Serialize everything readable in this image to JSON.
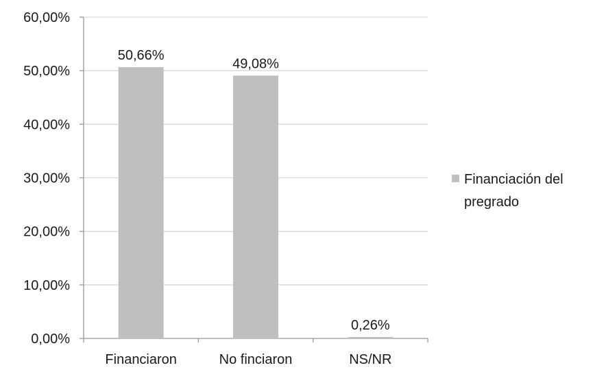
{
  "chart_data": {
    "type": "bar",
    "categories": [
      "Financiaron",
      "No finciaron",
      "NS/NR"
    ],
    "series": [
      {
        "name": "Financiación del pregrado",
        "values": [
          50.66,
          49.08,
          0.26
        ],
        "data_labels": [
          "50,66%",
          "49,08%",
          "0,26%"
        ],
        "color": "#bfbfbf"
      }
    ],
    "ylim": [
      0,
      60
    ],
    "yticks": [
      0,
      10,
      20,
      30,
      40,
      50,
      60
    ],
    "ytick_labels": [
      "0,00%",
      "10,00%",
      "20,00%",
      "30,00%",
      "40,00%",
      "50,00%",
      "60,00%"
    ],
    "grid": true,
    "grid_color": "#d9d9d9",
    "axis_color": "#999999",
    "legend": {
      "position": "right",
      "lines": [
        "Financiación del",
        "pregrado"
      ]
    }
  }
}
